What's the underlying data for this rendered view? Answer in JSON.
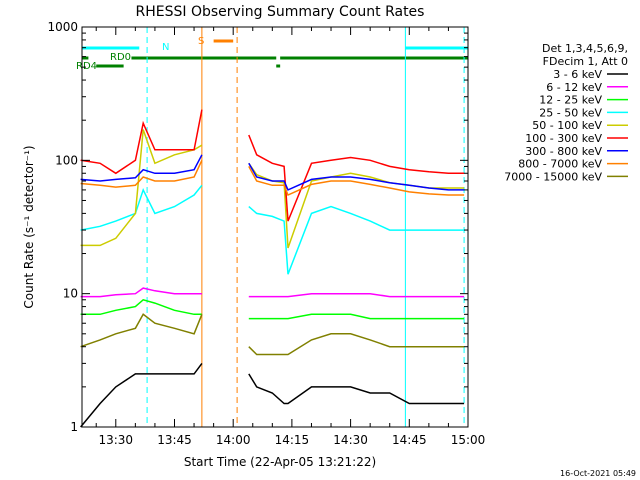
{
  "chart_data": {
    "type": "line",
    "title": "RHESSI Observing Summary Count Rates",
    "xlabel": "Start Time (22-Apr-05 13:21:22)",
    "ylabel": "Count Rate (s⁻¹ detector⁻¹)",
    "ylog": true,
    "xlim": [
      "13:21:22",
      "15:00:00"
    ],
    "ylim": [
      1,
      1000
    ],
    "x_ticks": [
      "13:30",
      "13:45",
      "14:00",
      "14:15",
      "14:30",
      "14:45",
      "15:00"
    ],
    "y_ticks": [
      "1",
      "10",
      "100",
      "1000"
    ],
    "legend_header": [
      "Det 1,3,4,5,6,9,",
      "FDecim 1, Att 0"
    ],
    "legend_position": "right",
    "footer_date": "16-Oct-2021 05:49",
    "flags": [
      {
        "label": "N",
        "color": "#00ffff",
        "segments": [
          [
            "13:21",
            "13:36"
          ],
          [
            "14:44",
            "15:00"
          ]
        ]
      },
      {
        "label": "S",
        "color": "#ff8000",
        "segments": [
          [
            "13:55",
            "14:00"
          ]
        ]
      },
      {
        "label": "RD0",
        "color": "#008000",
        "segments": [
          [
            "13:21",
            "13:23"
          ],
          [
            "13:34",
            "14:11"
          ],
          [
            "14:12",
            "15:00"
          ]
        ]
      },
      {
        "label": "RD4",
        "color": "#008000",
        "segments": [
          [
            "13:25",
            "13:32"
          ],
          [
            "14:11",
            "14:12"
          ]
        ]
      }
    ],
    "vertical_lines": [
      {
        "time": "13:38",
        "color": "#00ffff",
        "style": "dashed"
      },
      {
        "time": "13:52",
        "color": "#ff8000",
        "style": "solid"
      },
      {
        "time": "14:01",
        "color": "#ff8000",
        "style": "dashed"
      },
      {
        "time": "14:44",
        "color": "#00ffff",
        "style": "solid"
      },
      {
        "time": "14:59",
        "color": "#00ffff",
        "style": "dashed"
      }
    ],
    "gaps": [
      [
        "13:52",
        "14:04"
      ]
    ],
    "x": [
      "13:21",
      "13:26",
      "13:30",
      "13:35",
      "13:37",
      "13:40",
      "13:45",
      "13:50",
      "13:52",
      "14:04",
      "14:06",
      "14:10",
      "14:13",
      "14:14",
      "14:20",
      "14:25",
      "14:30",
      "14:35",
      "14:40",
      "14:45",
      "14:50",
      "14:55",
      "14:59"
    ],
    "series": [
      {
        "name": "3 - 6 keV",
        "color": "#000000",
        "values": [
          1,
          1.5,
          2,
          2.5,
          2.5,
          2.5,
          2.5,
          2.5,
          3,
          2.5,
          2,
          1.8,
          1.5,
          1.5,
          2,
          2,
          2,
          1.8,
          1.8,
          1.5,
          1.5,
          1.5,
          1.5
        ]
      },
      {
        "name": "6 - 12 keV",
        "color": "#ff00ff",
        "values": [
          9.5,
          9.5,
          9.8,
          10,
          11,
          10.5,
          10,
          10,
          10,
          9.5,
          9.5,
          9.5,
          9.5,
          9.5,
          10,
          10,
          10,
          10,
          9.5,
          9.5,
          9.5,
          9.5,
          9.5
        ]
      },
      {
        "name": "12 - 25 keV",
        "color": "#00ff00",
        "values": [
          7,
          7,
          7.5,
          8,
          9,
          8.5,
          7.5,
          7,
          7,
          6.5,
          6.5,
          6.5,
          6.5,
          6.5,
          7,
          7,
          7,
          6.5,
          6.5,
          6.5,
          6.5,
          6.5,
          6.5
        ]
      },
      {
        "name": "25 - 50 keV",
        "color": "#00ffff",
        "values": [
          30,
          32,
          35,
          40,
          60,
          40,
          45,
          55,
          65,
          45,
          40,
          38,
          35,
          14,
          40,
          45,
          40,
          35,
          30,
          30,
          30,
          30,
          30
        ]
      },
      {
        "name": "50 - 100 keV",
        "color": "#cccc00",
        "values": [
          23,
          23,
          26,
          40,
          170,
          95,
          110,
          120,
          130,
          95,
          78,
          70,
          68,
          22,
          70,
          75,
          80,
          75,
          68,
          65,
          62,
          62,
          62
        ]
      },
      {
        "name": "100 - 300 keV",
        "color": "#ff0000",
        "values": [
          100,
          95,
          80,
          100,
          190,
          120,
          120,
          120,
          240,
          155,
          110,
          95,
          90,
          35,
          95,
          100,
          105,
          100,
          90,
          85,
          82,
          80,
          80
        ]
      },
      {
        "name": "300 - 800 keV",
        "color": "#0000ff",
        "values": [
          72,
          70,
          72,
          74,
          85,
          80,
          80,
          85,
          110,
          95,
          75,
          70,
          70,
          60,
          72,
          75,
          75,
          72,
          68,
          65,
          62,
          60,
          60
        ]
      },
      {
        "name": "800 - 7000 keV",
        "color": "#ff8000",
        "values": [
          67,
          65,
          63,
          65,
          75,
          70,
          70,
          75,
          100,
          90,
          70,
          65,
          65,
          55,
          66,
          70,
          70,
          66,
          62,
          58,
          56,
          55,
          55
        ]
      },
      {
        "name": "7000 - 15000 keV",
        "color": "#808000",
        "values": [
          4,
          4.5,
          5,
          5.5,
          7,
          6,
          5.5,
          5,
          7,
          4,
          3.5,
          3.5,
          3.5,
          3.5,
          4.5,
          5,
          5,
          4.5,
          4,
          4,
          4,
          4,
          4
        ]
      }
    ]
  }
}
